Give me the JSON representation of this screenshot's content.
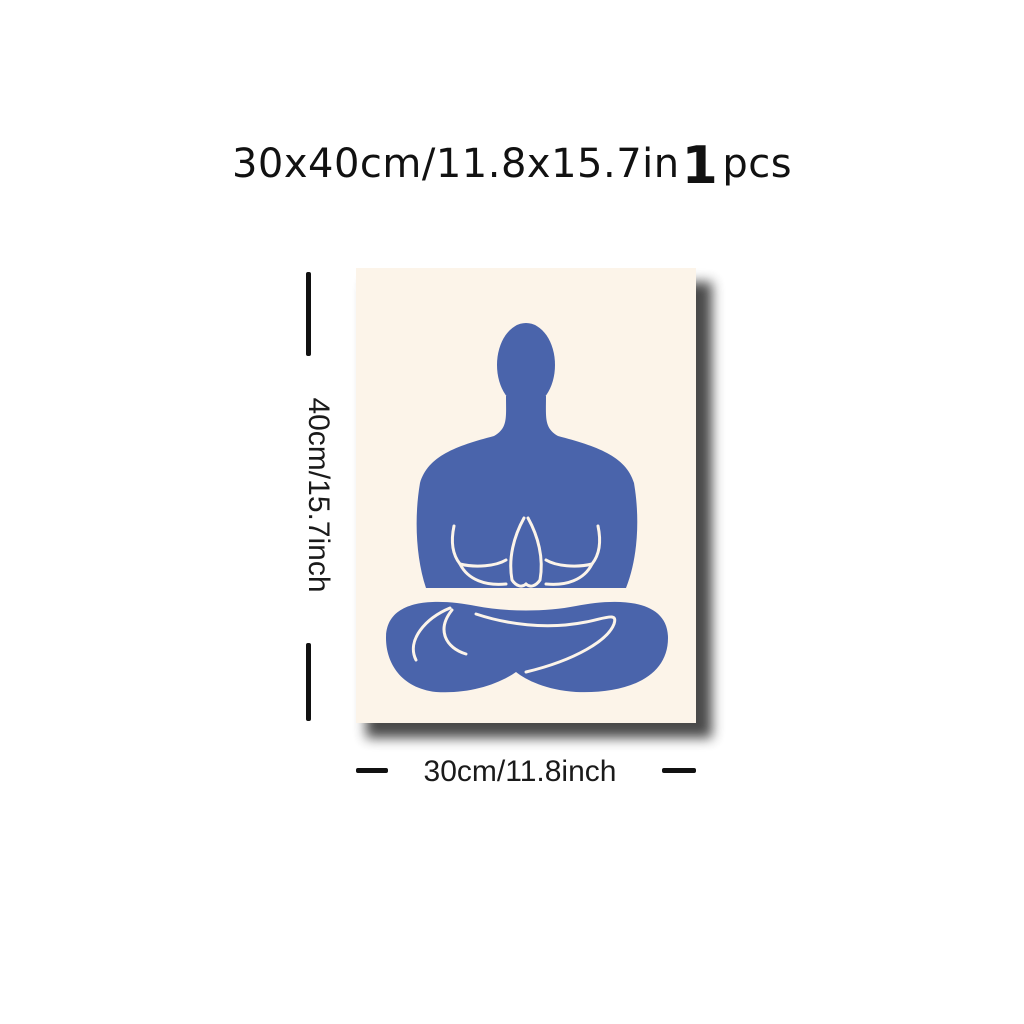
{
  "product": {
    "size_text": "30x40cm/11.8x15.7in",
    "quantity_number": "1",
    "quantity_unit": "pcs"
  },
  "dimensions": {
    "height_label": "40cm/15.7inch",
    "width_label": "30cm/11.8inch"
  },
  "artwork": {
    "subject": "meditating-figure-silhouette",
    "figure_color": "#4a64ab",
    "background_color": "#fcf4e9"
  }
}
